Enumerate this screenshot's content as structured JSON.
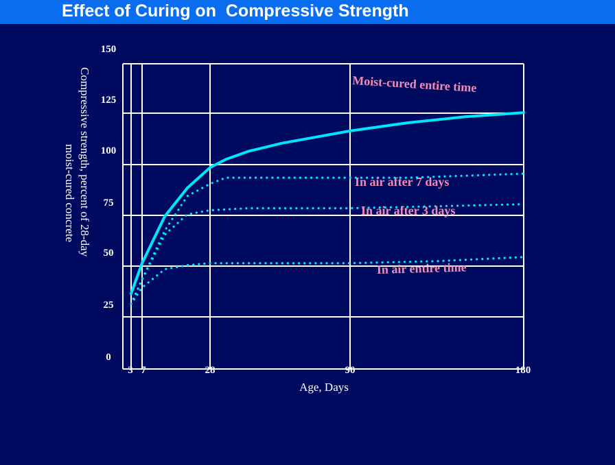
{
  "title": "Effect of Curing on  Compressive Strength",
  "colors": {
    "background": "#000a5e",
    "title_bar": "#0a6df0",
    "grid": "#ffffff",
    "series_line": "#00e5ff",
    "label_text": "#f08ab6"
  },
  "chart_data": {
    "type": "line",
    "title": "Effect of Curing on  Compressive Strength",
    "xlabel": "Age, Days",
    "ylabel_lines": [
      "Compressive strength, percent of 28-day",
      "moist-cured concrete"
    ],
    "xlim": [
      0,
      180
    ],
    "ylim": [
      0,
      150
    ],
    "xticks": [
      3,
      7,
      28,
      90,
      180
    ],
    "xtick_labels": [
      "3",
      "7",
      "28",
      "90",
      "180"
    ],
    "yticks": [
      0,
      25,
      50,
      75,
      100,
      125,
      150
    ],
    "ytick_labels": [
      "0",
      "25",
      "50",
      "75",
      "100",
      "125",
      "150"
    ],
    "grid": true,
    "series": [
      {
        "name": "Moist-cured entire time",
        "style": "solid",
        "points": [
          [
            3,
            37
          ],
          [
            7,
            52
          ],
          [
            14,
            75
          ],
          [
            21,
            89
          ],
          [
            28,
            99
          ],
          [
            35,
            103
          ],
          [
            45,
            107
          ],
          [
            60,
            111
          ],
          [
            75,
            114
          ],
          [
            90,
            117
          ],
          [
            120,
            121
          ],
          [
            150,
            124
          ],
          [
            180,
            126
          ]
        ]
      },
      {
        "name": "In air after 7 days",
        "style": "dotted",
        "points": [
          [
            3,
            32
          ],
          [
            7,
            44
          ],
          [
            14,
            68
          ],
          [
            21,
            85
          ],
          [
            28,
            91
          ],
          [
            35,
            94
          ],
          [
            60,
            94
          ],
          [
            90,
            94
          ],
          [
            120,
            94
          ],
          [
            150,
            95
          ],
          [
            180,
            96
          ]
        ]
      },
      {
        "name": "In air after 3 days",
        "style": "dotted",
        "points": [
          [
            3,
            32
          ],
          [
            7,
            44
          ],
          [
            14,
            66
          ],
          [
            21,
            76
          ],
          [
            28,
            78
          ],
          [
            45,
            79
          ],
          [
            90,
            79
          ],
          [
            135,
            80
          ],
          [
            180,
            81
          ]
        ]
      },
      {
        "name": "In air entire time",
        "style": "dotted",
        "points": [
          [
            3,
            32
          ],
          [
            7,
            40
          ],
          [
            14,
            49
          ],
          [
            21,
            51
          ],
          [
            28,
            52
          ],
          [
            60,
            52
          ],
          [
            90,
            52
          ],
          [
            135,
            53
          ],
          [
            180,
            55
          ]
        ]
      }
    ]
  }
}
